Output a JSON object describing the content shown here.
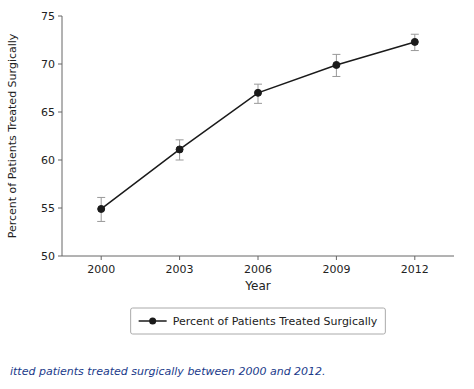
{
  "chart_data": {
    "type": "line",
    "x": [
      2000,
      2003,
      2006,
      2009,
      2012
    ],
    "series": [
      {
        "name": "Percent of Patients Treated Surgically",
        "color": "#1a1a1a",
        "marker": "circle",
        "line_style": "solid",
        "values": [
          54.9,
          61.1,
          67.0,
          69.9,
          72.3
        ],
        "error_lower": [
          1.3,
          1.1,
          1.1,
          1.2,
          0.9
        ],
        "error_upper": [
          1.2,
          1.0,
          0.9,
          1.1,
          0.8
        ]
      }
    ],
    "xlim": [
      1998.5,
      2013.5
    ],
    "xticks": [
      2000,
      2003,
      2006,
      2009,
      2012
    ],
    "ylim": [
      50,
      75
    ],
    "yticks": [
      50,
      55,
      60,
      65,
      70,
      75
    ],
    "xlabel": "Year",
    "ylabel": "Percent of Patients Treated Surgically",
    "annotations": [
      "itted patients treated surgically between 2000 and 2012."
    ],
    "legend": "bottom",
    "grid": false
  }
}
